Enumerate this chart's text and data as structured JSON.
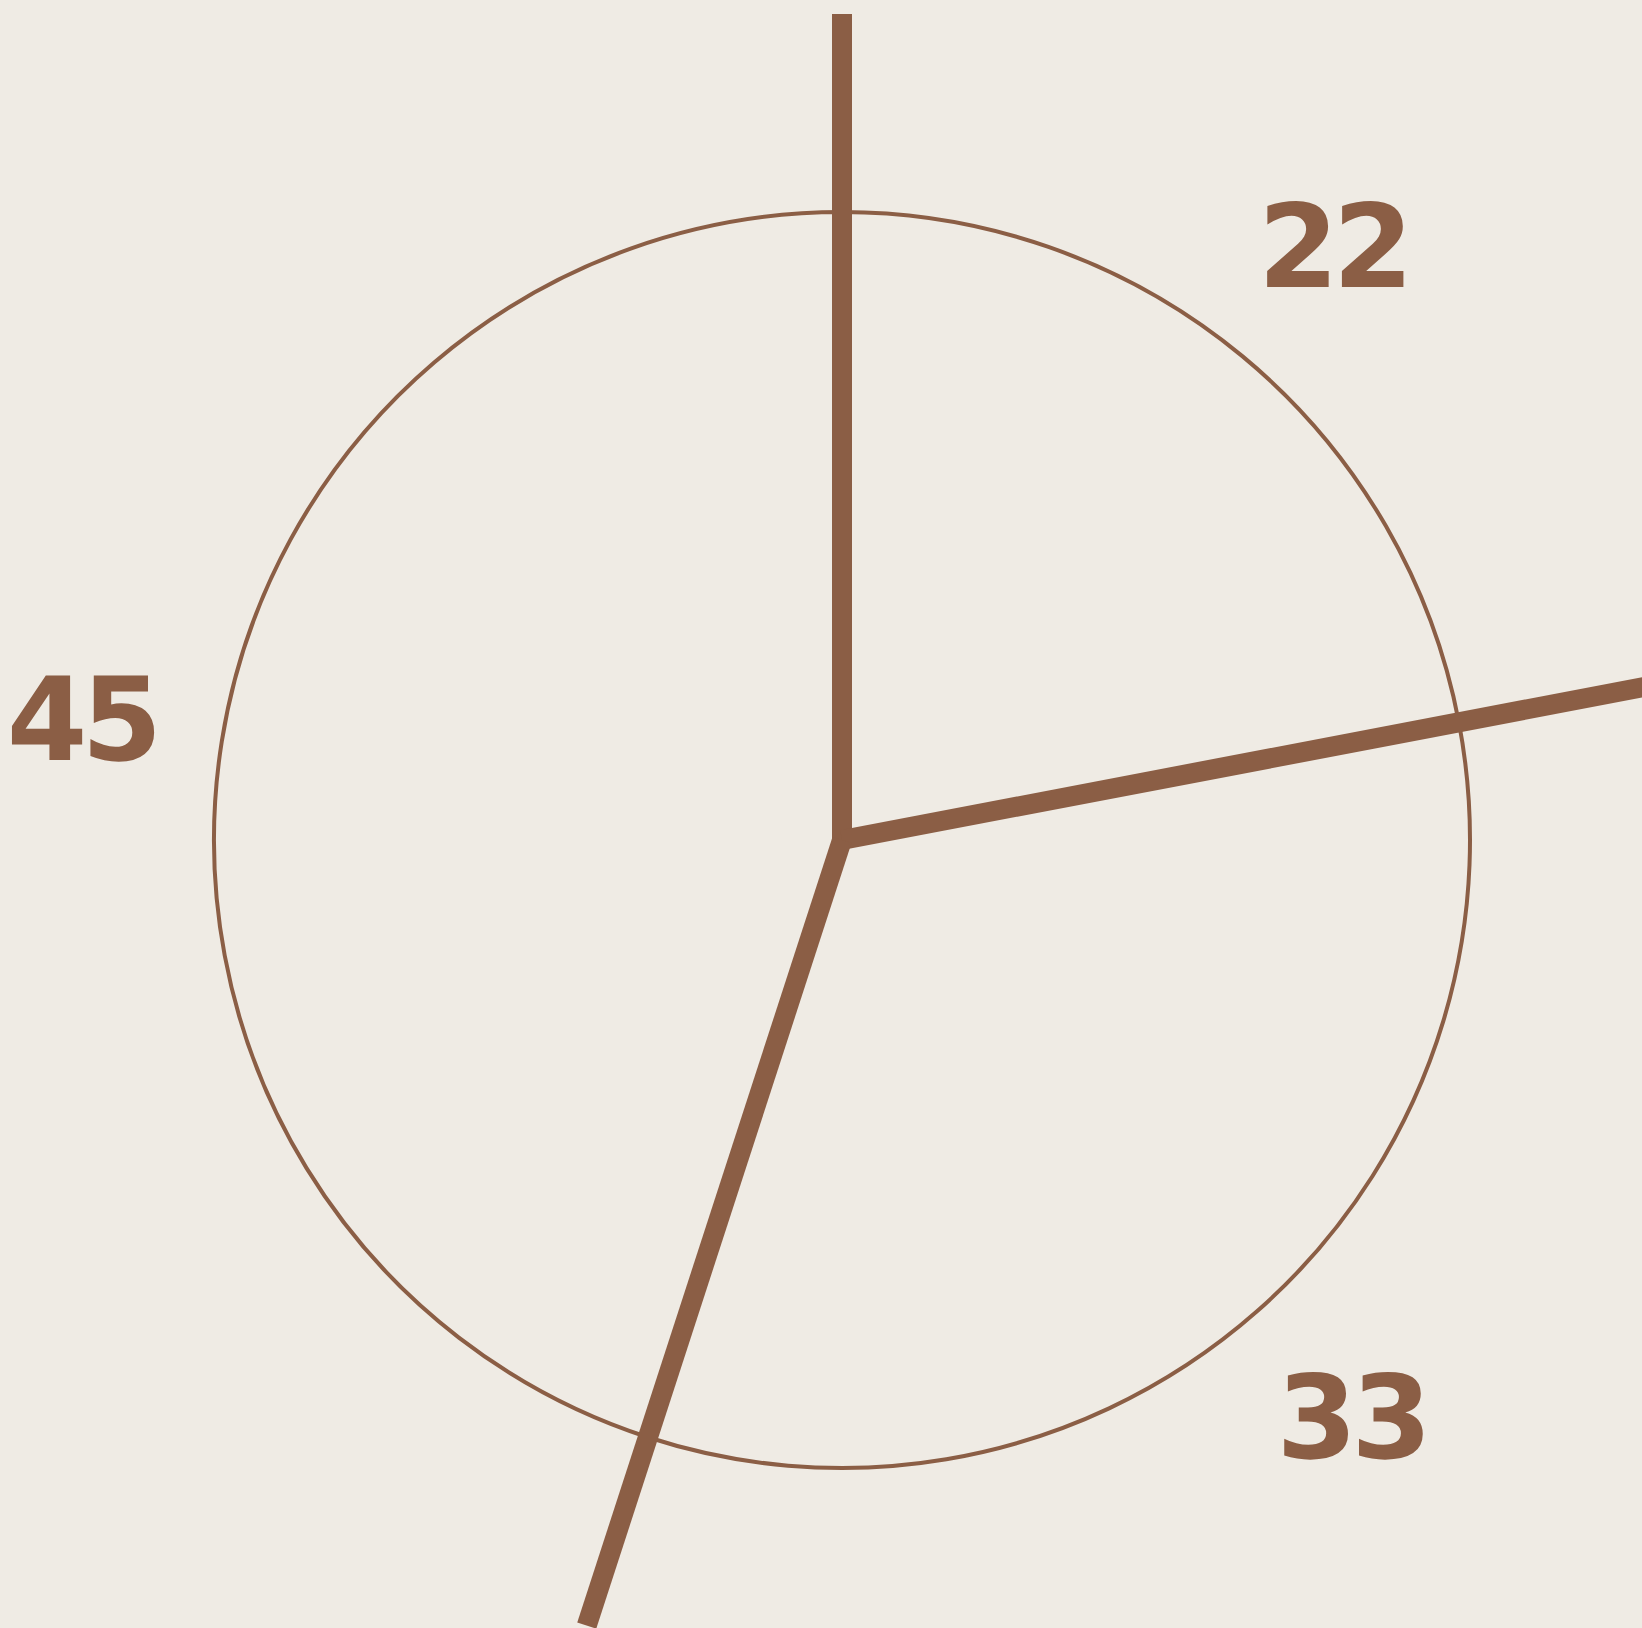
{
  "chart_data": {
    "type": "pie",
    "categories": [
      null,
      null,
      null
    ],
    "values": [
      22,
      33,
      45
    ],
    "colors": [
      "#8b5e45",
      "#8b5e45",
      "#8b5e45"
    ],
    "data_labels": true
  }
}
